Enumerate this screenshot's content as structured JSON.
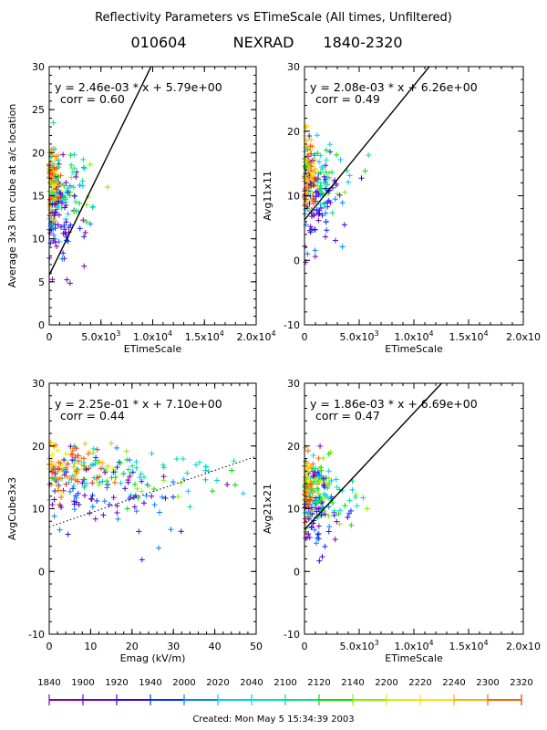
{
  "page_title": "Reflectivity Parameters vs ETimeScale (All times, Unfiltered)",
  "subtitle": {
    "date": "010604",
    "radar": "NEXRAD",
    "range": "1840-2320"
  },
  "footer": "Created: Mon May  5 15:34:39 2003",
  "colorbar": {
    "labels": [
      "1840",
      "1900",
      "1920",
      "1940",
      "2000",
      "2020",
      "2040",
      "2100",
      "2120",
      "2140",
      "2200",
      "2220",
      "2240",
      "2300",
      "2320"
    ],
    "colors": [
      "#7a00b0",
      "#6a00c8",
      "#3a00e0",
      "#0030ff",
      "#0080ff",
      "#00c8ff",
      "#00e0c0",
      "#00e080",
      "#00e000",
      "#80f000",
      "#d8f000",
      "#ffe000",
      "#ffb000",
      "#ff6000",
      "#ff2020"
    ]
  },
  "chart_data": [
    {
      "type": "scatter",
      "panel": "top-left",
      "ylabel": "Average 3x3 km cube at a/c location",
      "xlabel": "ETimeScale",
      "xlim": [
        0,
        20000
      ],
      "ylim": [
        0,
        30
      ],
      "xticks": [
        "0",
        "5.0x10^3",
        "1.0x10^4",
        "1.5x10^4",
        "2.0x10^4"
      ],
      "yticks": [
        "0",
        "5",
        "10",
        "15",
        "20",
        "25",
        "30"
      ],
      "fit_text": "y = 2.46e-03 * x  + 5.79e+00",
      "corr_text": "corr = 0.60",
      "fit": {
        "slope": 0.00246,
        "intercept": 5.79,
        "style": "solid"
      },
      "cluster": {
        "center_x": 1500,
        "center_y": 15.5,
        "spread_x": 1500,
        "spread_y": 3.5,
        "xmax": 6000
      }
    },
    {
      "type": "scatter",
      "panel": "top-right",
      "ylabel": "Avg11x11",
      "xlabel": "ETimeScale",
      "xlim": [
        0,
        20000
      ],
      "ylim": [
        -10,
        30
      ],
      "xticks": [
        "0",
        "5.0x10^3",
        "1.0x10^4",
        "1.5x10^4",
        "2.0x10"
      ],
      "yticks": [
        "-10",
        "0",
        "10",
        "20",
        "30"
      ],
      "fit_text": "y = 2.08e-03 * x  + 6.26e+00",
      "corr_text": "corr = 0.49",
      "fit": {
        "slope": 0.00208,
        "intercept": 6.26,
        "style": "solid"
      },
      "cluster": {
        "center_x": 1500,
        "center_y": 12.5,
        "spread_x": 1500,
        "spread_y": 4.5,
        "xmax": 6500
      }
    },
    {
      "type": "scatter",
      "panel": "bottom-left",
      "ylabel": "AvgCube3x3",
      "xlabel": "Emag (kV/m)",
      "xlim": [
        0,
        50
      ],
      "ylim": [
        -10,
        30
      ],
      "xticks": [
        "0",
        "10",
        "20",
        "30",
        "40",
        "50"
      ],
      "yticks": [
        "-10",
        "0",
        "10",
        "20",
        "30"
      ],
      "fit_text": "y = 2.25e-01 * x  + 7.10e+00",
      "corr_text": "corr = 0.44",
      "fit": {
        "slope": 0.225,
        "intercept": 7.1,
        "style": "dotted"
      },
      "cluster": {
        "center_x": 10,
        "center_y": 15.5,
        "spread_x": 18,
        "spread_y": 3.5,
        "xmax": 48
      }
    },
    {
      "type": "scatter",
      "panel": "bottom-right",
      "ylabel": "Avg21x21",
      "xlabel": "ETimeScale",
      "xlim": [
        0,
        20000
      ],
      "ylim": [
        -10,
        30
      ],
      "xticks": [
        "0",
        "5.0x10^3",
        "1.0x10^4",
        "1.5x10^4",
        "2.0x10"
      ],
      "yticks": [
        "-10",
        "0",
        "10",
        "20",
        "30"
      ],
      "fit_text": "y = 1.86e-03 * x  + 6.69e+00",
      "corr_text": "corr = 0.47",
      "fit": {
        "slope": 0.00186,
        "intercept": 6.69,
        "style": "solid"
      },
      "cluster": {
        "center_x": 1500,
        "center_y": 12.5,
        "spread_x": 1500,
        "spread_y": 4,
        "xmax": 6500
      }
    }
  ]
}
